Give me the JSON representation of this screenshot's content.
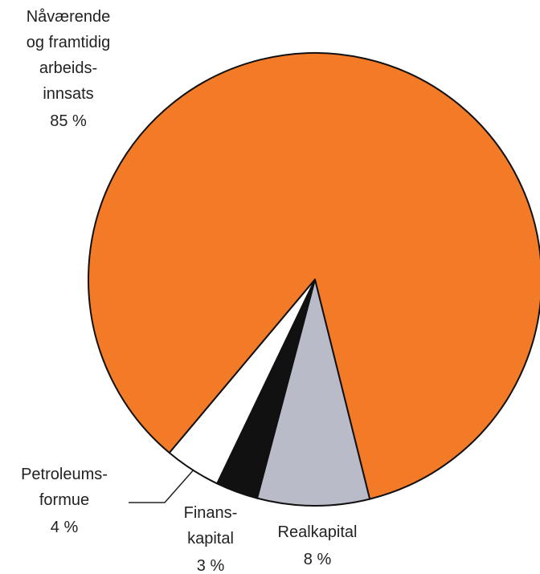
{
  "chart_data": {
    "type": "pie",
    "categories": [
      "Realkapital",
      "Finans-\nkapital",
      "Petroleums-\nformue",
      "Nåværende\nog framtidig\narbeids-\ninnsats"
    ],
    "values": [
      8,
      3,
      4,
      85
    ],
    "value_labels": [
      "8 %",
      "3 %",
      "4 %",
      "85 %"
    ],
    "colors": [
      "#b9bbc8",
      "#111111",
      "#ffffff",
      "#f37a27"
    ]
  }
}
